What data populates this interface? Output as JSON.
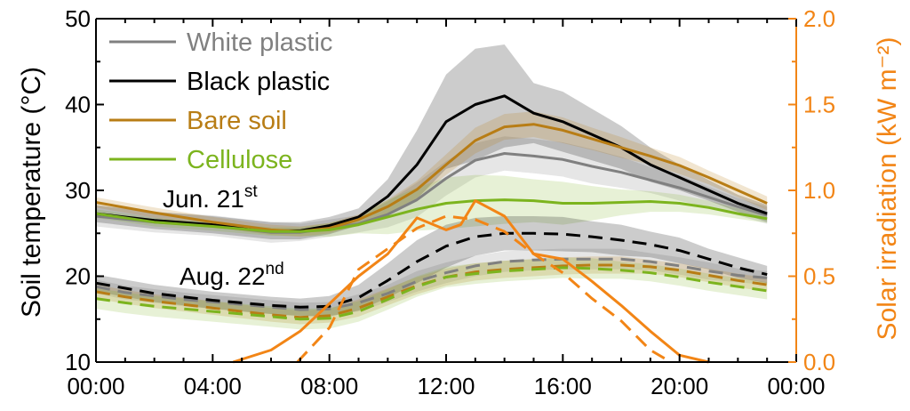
{
  "chart_data": {
    "type": "line",
    "xlabel": "",
    "ylabel": "Soil temperature (°C)",
    "ylabel2": "Solar irradiation (kW m⁻²)",
    "xlim_hours": [
      0,
      24
    ],
    "ylim": [
      10,
      50
    ],
    "ylim2": [
      0,
      2.0
    ],
    "x_ticks": [
      {
        "hour": 0,
        "label": "00:00"
      },
      {
        "hour": 4,
        "label": "04:00"
      },
      {
        "hour": 8,
        "label": "08:00"
      },
      {
        "hour": 12,
        "label": "12:00"
      },
      {
        "hour": 16,
        "label": "16:00"
      },
      {
        "hour": 20,
        "label": "20:00"
      },
      {
        "hour": 24,
        "label": "00:00"
      }
    ],
    "y_ticks": [
      "10",
      "20",
      "30",
      "40",
      "50"
    ],
    "y2_ticks": [
      "0.0",
      "0.5",
      "1.0",
      "1.5",
      "2.0"
    ],
    "grid": false,
    "legend_placement": "top-left",
    "annotations": {
      "jun": {
        "text": "Jun. 21",
        "sup": "st"
      },
      "aug": {
        "text": "Aug. 22",
        "sup": "nd"
      }
    },
    "series": [
      {
        "name": "White plastic",
        "key": "white",
        "color": "#808080",
        "date": "Jun. 21st",
        "axis": "left",
        "dash": false,
        "x": [
          0,
          2,
          4,
          6,
          7,
          8,
          9,
          10,
          11,
          12,
          13,
          14,
          15,
          16,
          17,
          18,
          19,
          20,
          21,
          22,
          23
        ],
        "y": [
          27,
          26.3,
          25.9,
          25.1,
          25.1,
          25.6,
          26.1,
          27.2,
          28.9,
          31.4,
          33.5,
          34.3,
          34.0,
          33.6,
          32.8,
          32.1,
          31.2,
          30.3,
          29.2,
          28.1,
          27.1
        ],
        "band": [
          1.2,
          1.2,
          1.2,
          1.2,
          1.0,
          1.0,
          1.0,
          1.5,
          2.0,
          2.0,
          2.0,
          2.0,
          2.0,
          2.0,
          2.0,
          1.8,
          1.5,
          1.5,
          1.2,
          1.0,
          1.0
        ]
      },
      {
        "name": "Black plastic",
        "key": "black",
        "color": "#000000",
        "date": "Jun. 21st",
        "axis": "left",
        "dash": false,
        "x": [
          0,
          2,
          4,
          6,
          7,
          8,
          9,
          10,
          11,
          12,
          13,
          14,
          15,
          16,
          17,
          18,
          19,
          20,
          21,
          22,
          23
        ],
        "y": [
          27.3,
          26.5,
          26.0,
          25.3,
          25.3,
          25.9,
          26.9,
          29.3,
          33.0,
          38.0,
          40.0,
          41.0,
          39.0,
          38.0,
          36.5,
          35.0,
          33.0,
          31.5,
          30.0,
          28.5,
          27.3
        ],
        "band": [
          1.0,
          1.0,
          1.0,
          1.0,
          1.0,
          1.0,
          1.0,
          2.0,
          4.0,
          5.5,
          6.5,
          6.0,
          3.5,
          3.5,
          3.0,
          2.5,
          2.0,
          1.5,
          1.2,
          1.0,
          1.0
        ]
      },
      {
        "name": "Bare soil",
        "key": "bare",
        "color": "#b87d15",
        "date": "Jun. 21st",
        "axis": "left",
        "dash": false,
        "x": [
          0,
          2,
          4,
          6,
          7,
          8,
          9,
          10,
          11,
          12,
          13,
          14,
          15,
          16,
          17,
          18,
          19,
          20,
          21,
          22,
          23
        ],
        "y": [
          28.6,
          27.4,
          26.3,
          25.4,
          25.2,
          25.6,
          26.6,
          28.1,
          30.1,
          33.0,
          35.8,
          37.4,
          37.7,
          37.0,
          36.0,
          35.0,
          34.0,
          32.9,
          31.5,
          30.0,
          28.5
        ],
        "band": [
          0.6,
          0.6,
          0.6,
          0.6,
          0.6,
          0.6,
          0.6,
          0.8,
          1.0,
          1.2,
          1.5,
          1.5,
          1.5,
          1.5,
          1.3,
          1.2,
          1.0,
          1.0,
          0.8,
          0.8,
          0.8
        ]
      },
      {
        "name": "Cellulose",
        "key": "cellulose",
        "color": "#7cb41e",
        "date": "Jun. 21st",
        "axis": "left",
        "dash": false,
        "x": [
          0,
          2,
          4,
          6,
          7,
          8,
          9,
          10,
          11,
          12,
          13,
          14,
          15,
          16,
          17,
          18,
          19,
          20,
          21,
          22,
          23
        ],
        "y": [
          27.3,
          26.3,
          25.8,
          25.2,
          25.2,
          25.4,
          26.0,
          26.9,
          27.8,
          28.5,
          28.8,
          28.9,
          28.8,
          28.5,
          28.5,
          28.6,
          28.7,
          28.5,
          28.0,
          27.3,
          26.7
        ],
        "band": [
          0.5,
          0.5,
          0.5,
          0.5,
          0.5,
          0.8,
          1.0,
          2.0,
          2.5,
          3.0,
          3.0,
          2.8,
          2.5,
          2.5,
          2.0,
          1.5,
          1.2,
          1.0,
          0.8,
          0.6,
          0.5
        ]
      },
      {
        "name": "White plastic",
        "key": "white",
        "color": "#808080",
        "date": "Aug. 22nd",
        "axis": "left",
        "dash": true,
        "x": [
          0,
          1,
          2,
          3,
          4,
          5,
          6,
          7,
          8,
          9,
          10,
          11,
          12,
          13,
          14,
          15,
          16,
          17,
          18,
          19,
          20,
          21,
          22,
          23
        ],
        "y": [
          18.8,
          18.1,
          17.7,
          17.3,
          17.0,
          16.7,
          16.4,
          16.1,
          16.2,
          16.9,
          18.0,
          19.4,
          20.4,
          21.2,
          21.7,
          21.9,
          22.0,
          22.0,
          22.0,
          21.7,
          21.2,
          20.6,
          20.1,
          19.8
        ],
        "band": [
          0.8,
          0.8,
          0.8,
          0.8,
          0.8,
          0.8,
          0.8,
          0.8,
          0.8,
          1.0,
          1.0,
          1.2,
          1.2,
          1.2,
          1.2,
          1.2,
          1.2,
          1.2,
          1.2,
          1.0,
          1.0,
          1.0,
          0.8,
          0.8
        ]
      },
      {
        "name": "Black plastic",
        "key": "black",
        "color": "#000000",
        "date": "Aug. 22nd",
        "axis": "left",
        "dash": true,
        "x": [
          0,
          1,
          2,
          3,
          4,
          5,
          6,
          7,
          8,
          9,
          10,
          11,
          12,
          13,
          14,
          15,
          16,
          17,
          18,
          19,
          20,
          21,
          22,
          23
        ],
        "y": [
          19.2,
          18.6,
          18.0,
          17.6,
          17.2,
          16.9,
          16.6,
          16.4,
          16.5,
          17.5,
          19.5,
          21.7,
          23.5,
          24.6,
          25.0,
          25.0,
          24.9,
          24.6,
          24.2,
          23.7,
          23.0,
          22.0,
          21.0,
          20.2
        ],
        "band": [
          1.0,
          1.0,
          1.0,
          1.0,
          1.0,
          1.0,
          1.0,
          1.0,
          1.2,
          1.5,
          2.0,
          2.5,
          2.5,
          2.2,
          2.0,
          2.0,
          2.0,
          1.8,
          1.8,
          1.5,
          1.5,
          1.2,
          1.2,
          1.0
        ]
      },
      {
        "name": "Bare soil",
        "key": "bare",
        "color": "#b87d15",
        "date": "Aug. 22nd",
        "axis": "left",
        "dash": true,
        "x": [
          0,
          1,
          2,
          3,
          4,
          5,
          6,
          7,
          8,
          9,
          10,
          11,
          12,
          13,
          14,
          15,
          16,
          17,
          18,
          19,
          20,
          21,
          22,
          23
        ],
        "y": [
          18.2,
          17.6,
          17.1,
          16.7,
          16.3,
          15.9,
          15.5,
          15.2,
          15.4,
          16.3,
          17.6,
          18.9,
          19.9,
          20.5,
          20.8,
          21.0,
          21.2,
          21.3,
          21.3,
          21.1,
          20.7,
          20.1,
          19.5,
          19.0
        ],
        "band": [
          0.8,
          0.8,
          0.8,
          0.8,
          0.8,
          0.8,
          0.8,
          0.8,
          0.8,
          1.0,
          1.0,
          1.0,
          1.0,
          1.0,
          1.0,
          1.0,
          1.0,
          1.0,
          1.0,
          0.8,
          0.8,
          0.8,
          0.8,
          0.8
        ]
      },
      {
        "name": "Cellulose",
        "key": "cellulose",
        "color": "#7cb41e",
        "date": "Aug. 22nd",
        "axis": "left",
        "dash": true,
        "x": [
          0,
          1,
          2,
          3,
          4,
          5,
          6,
          7,
          8,
          9,
          10,
          11,
          12,
          13,
          14,
          15,
          16,
          17,
          18,
          19,
          20,
          21,
          22,
          23
        ],
        "y": [
          17.4,
          16.9,
          16.5,
          16.2,
          15.9,
          15.6,
          15.3,
          15.0,
          15.1,
          15.9,
          17.3,
          18.8,
          19.9,
          20.3,
          20.6,
          20.8,
          21.0,
          20.9,
          20.7,
          20.4,
          19.9,
          19.3,
          18.8,
          18.3
        ],
        "band": [
          1.2,
          1.2,
          1.2,
          1.2,
          1.2,
          1.2,
          1.2,
          1.2,
          1.2,
          1.2,
          1.2,
          1.2,
          1.2,
          1.2,
          1.2,
          1.2,
          1.2,
          1.2,
          1.0,
          1.0,
          1.0,
          1.0,
          1.0,
          1.0
        ]
      },
      {
        "name": "Solar irradiation",
        "key": "solar",
        "color": "#f28516",
        "date": "Jun. 21st",
        "axis": "right",
        "dash": false,
        "x": [
          4.7,
          6,
          7,
          8,
          9,
          10,
          11,
          12,
          12.5,
          13,
          14,
          15,
          16,
          17,
          18,
          19,
          20,
          21
        ],
        "y": [
          0.0,
          0.07,
          0.18,
          0.34,
          0.5,
          0.63,
          0.84,
          0.77,
          0.8,
          0.94,
          0.85,
          0.63,
          0.6,
          0.47,
          0.33,
          0.18,
          0.04,
          0.0
        ]
      },
      {
        "name": "Solar irradiation",
        "key": "solar",
        "color": "#f28516",
        "date": "Aug. 22nd",
        "axis": "right",
        "dash": true,
        "x": [
          6.9,
          8,
          9,
          10,
          11,
          12,
          13,
          14,
          15,
          16,
          17,
          18,
          19,
          19.7
        ],
        "y": [
          0.0,
          0.2,
          0.54,
          0.66,
          0.78,
          0.85,
          0.83,
          0.76,
          0.63,
          0.52,
          0.37,
          0.24,
          0.07,
          0.0
        ]
      }
    ],
    "legend": [
      {
        "key": "white",
        "label": "White plastic",
        "color": "#808080"
      },
      {
        "key": "black",
        "label": "Black plastic",
        "color": "#000000"
      },
      {
        "key": "bare",
        "label": "Bare soil",
        "color": "#b87d15"
      },
      {
        "key": "cellulose",
        "label": "Cellulose",
        "color": "#7cb41e"
      }
    ]
  }
}
